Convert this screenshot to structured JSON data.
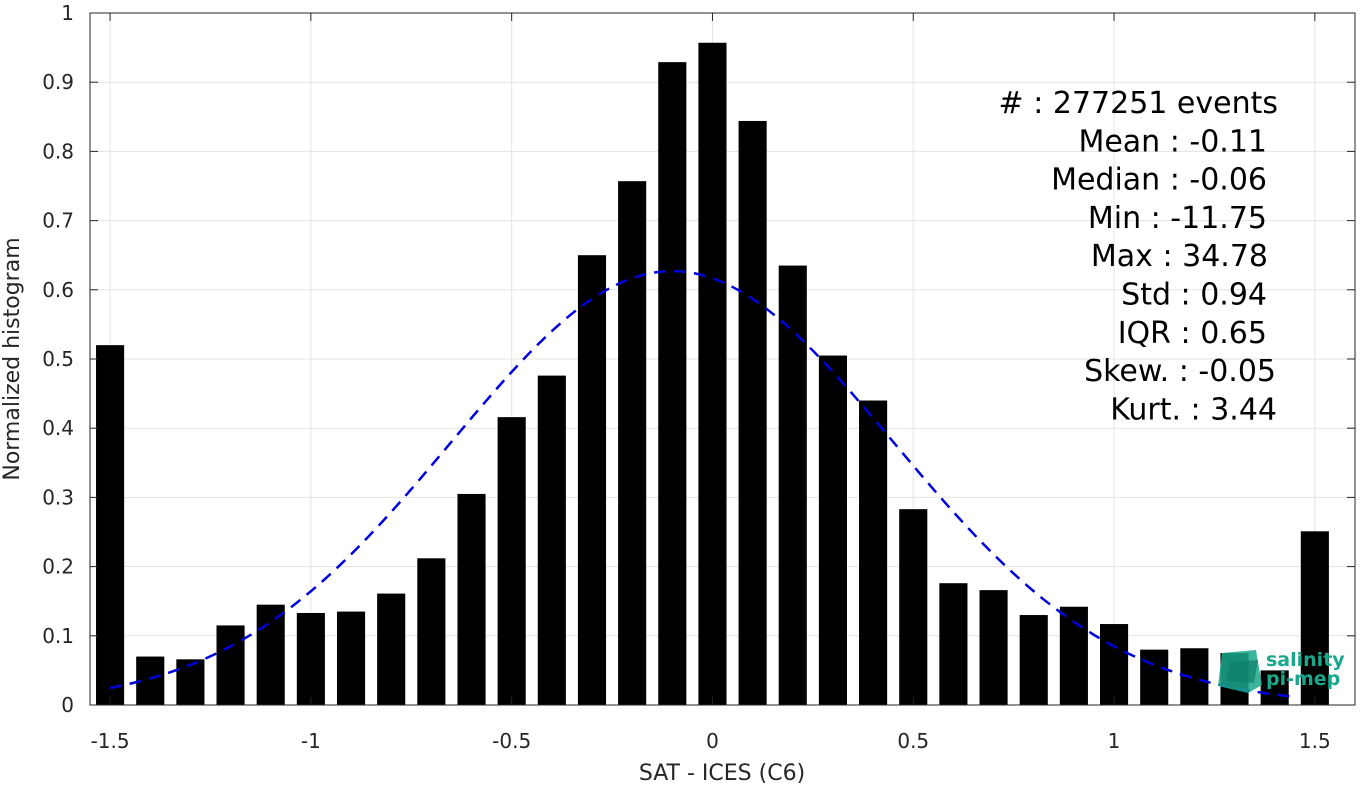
{
  "chart_data": {
    "type": "bar",
    "xlabel": "SAT - ICES (C6)",
    "ylabel": "Normalized histogram",
    "xlim": [
      -1.55,
      1.6
    ],
    "ylim": [
      0,
      1
    ],
    "grid": true,
    "x_ticks": [
      -1.5,
      -1,
      -0.5,
      0,
      0.5,
      1,
      1.5
    ],
    "x_tick_labels": [
      "-1.5",
      "-1",
      "-0.5",
      "0",
      "0.5",
      "1",
      "1.5"
    ],
    "y_ticks": [
      0,
      0.1,
      0.2,
      0.3,
      0.4,
      0.5,
      0.6,
      0.7,
      0.8,
      0.9,
      1
    ],
    "y_tick_labels": [
      "0",
      "0.1",
      "0.2",
      "0.3",
      "0.4",
      "0.5",
      "0.6",
      "0.7",
      "0.8",
      "0.9",
      "1"
    ],
    "bar_width": 0.07,
    "bins": [
      {
        "x": -1.5,
        "value": 0.52
      },
      {
        "x": -1.4,
        "value": 0.07
      },
      {
        "x": -1.3,
        "value": 0.066
      },
      {
        "x": -1.2,
        "value": 0.115
      },
      {
        "x": -1.1,
        "value": 0.145
      },
      {
        "x": -1.0,
        "value": 0.133
      },
      {
        "x": -0.9,
        "value": 0.135
      },
      {
        "x": -0.8,
        "value": 0.161
      },
      {
        "x": -0.7,
        "value": 0.212
      },
      {
        "x": -0.6,
        "value": 0.305
      },
      {
        "x": -0.5,
        "value": 0.416
      },
      {
        "x": -0.4,
        "value": 0.476
      },
      {
        "x": -0.3,
        "value": 0.65
      },
      {
        "x": -0.2,
        "value": 0.757
      },
      {
        "x": -0.1,
        "value": 0.929
      },
      {
        "x": 0.0,
        "value": 0.957
      },
      {
        "x": 0.1,
        "value": 0.844
      },
      {
        "x": 0.2,
        "value": 0.635
      },
      {
        "x": 0.3,
        "value": 0.505
      },
      {
        "x": 0.4,
        "value": 0.44
      },
      {
        "x": 0.5,
        "value": 0.283
      },
      {
        "x": 0.6,
        "value": 0.176
      },
      {
        "x": 0.7,
        "value": 0.166
      },
      {
        "x": 0.8,
        "value": 0.13
      },
      {
        "x": 0.9,
        "value": 0.142
      },
      {
        "x": 1.0,
        "value": 0.117
      },
      {
        "x": 1.1,
        "value": 0.08
      },
      {
        "x": 1.2,
        "value": 0.082
      },
      {
        "x": 1.3,
        "value": 0.075
      },
      {
        "x": 1.4,
        "value": 0.05
      },
      {
        "x": 1.5,
        "value": 0.251
      }
    ],
    "fit_curve": {
      "type": "gaussian",
      "mean": -0.1,
      "peak": 0.627,
      "sigma": 0.55,
      "x_range": [
        -1.5,
        1.45
      ],
      "color": "#0000dd",
      "style": "dashed"
    },
    "bar_color": "#000000",
    "annotations": [
      "#  : 277251 events",
      "Mean : -0.11",
      "Median : -0.06",
      "Min : -11.75",
      "Max : 34.78",
      "Std : 0.94",
      "IQR : 0.65",
      "Skew. : -0.05",
      "Kurt. : 3.44"
    ]
  },
  "logo": {
    "line1": "salinity",
    "line2": "pi-mep",
    "color": "#1aa88c"
  }
}
